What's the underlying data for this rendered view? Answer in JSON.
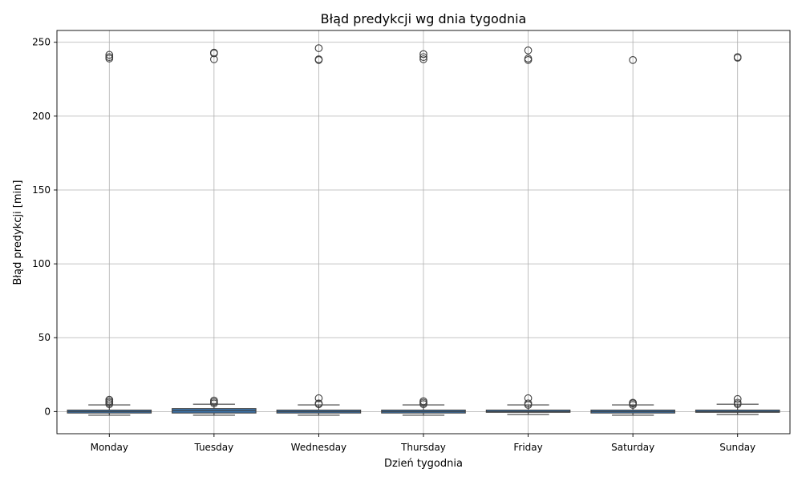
{
  "chart_data": {
    "type": "box",
    "title": "Błąd predykcji wg dnia tygodnia",
    "xlabel": "Dzień tygodnia",
    "ylabel": "Błąd predykcji [min]",
    "ylim": [
      -15,
      258
    ],
    "yticks": [
      0,
      50,
      100,
      150,
      200,
      250
    ],
    "grid": true,
    "box_color": "#3b75af",
    "categories": [
      "Monday",
      "Tuesday",
      "Wednesday",
      "Thursday",
      "Friday",
      "Saturday",
      "Sunday"
    ],
    "boxes": [
      {
        "category": "Monday",
        "whislo": -2.5,
        "q1": -1.0,
        "median": 0.0,
        "q3": 1.0,
        "whishi": 4.5,
        "fliers": [
          5.0,
          6.0,
          7.0,
          8.0,
          239.0,
          240.0,
          241.5
        ]
      },
      {
        "category": "Tuesday",
        "whislo": -2.5,
        "q1": -1.0,
        "median": 0.5,
        "q3": 2.0,
        "whishi": 5.0,
        "fliers": [
          5.5,
          6.5,
          7.5,
          238.5,
          242.5,
          243.0
        ]
      },
      {
        "category": "Wednesday",
        "whislo": -2.5,
        "q1": -1.0,
        "median": 0.0,
        "q3": 1.0,
        "whishi": 4.5,
        "fliers": [
          5.0,
          5.5,
          9.0,
          238.0,
          238.5,
          246.0
        ]
      },
      {
        "category": "Thursday",
        "whislo": -2.5,
        "q1": -1.0,
        "median": 0.0,
        "q3": 1.0,
        "whishi": 4.5,
        "fliers": [
          5.0,
          6.0,
          7.0,
          238.5,
          240.0,
          242.0
        ]
      },
      {
        "category": "Friday",
        "whislo": -2.0,
        "q1": -0.5,
        "median": 0.0,
        "q3": 1.0,
        "whishi": 4.5,
        "fliers": [
          4.5,
          5.5,
          9.0,
          238.0,
          239.0,
          244.5
        ]
      },
      {
        "category": "Saturday",
        "whislo": -2.5,
        "q1": -1.0,
        "median": 0.0,
        "q3": 1.0,
        "whishi": 4.5,
        "fliers": [
          4.5,
          5.5,
          6.0,
          238.0
        ]
      },
      {
        "category": "Sunday",
        "whislo": -2.0,
        "q1": -0.5,
        "median": 0.0,
        "q3": 1.0,
        "whishi": 5.0,
        "fliers": [
          5.0,
          6.0,
          8.5,
          239.5,
          240.0
        ]
      }
    ]
  }
}
